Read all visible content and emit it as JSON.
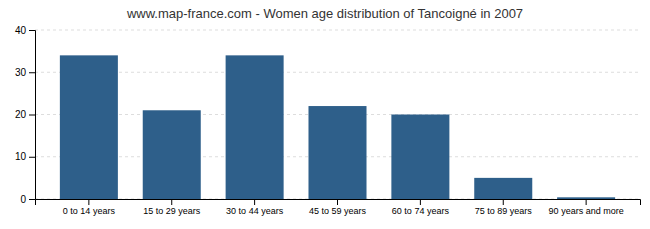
{
  "chart_data": {
    "type": "bar",
    "title": "www.map-france.com - Women age distribution of Tancoigné in 2007",
    "categories": [
      "0 to 14 years",
      "15 to 29 years",
      "30 to 44 years",
      "45 to 59 years",
      "60 to 74 years",
      "75 to 89 years",
      "90 years and more"
    ],
    "values": [
      34,
      21,
      34,
      22,
      20,
      5,
      0.4
    ],
    "color": "#2e5f8a",
    "ylim": [
      0,
      40
    ],
    "yticks": [
      0,
      10,
      20,
      30,
      40
    ],
    "grid": true
  }
}
